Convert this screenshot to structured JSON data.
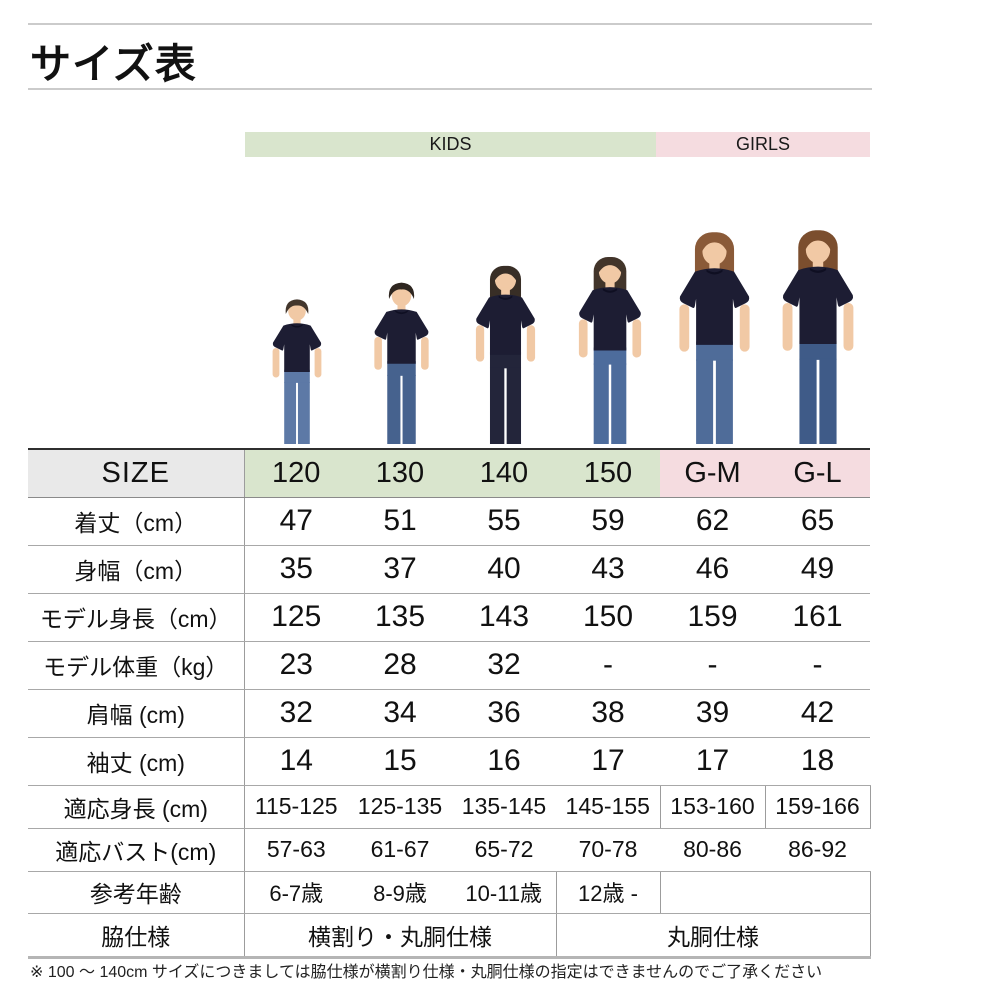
{
  "page": {
    "title": "サイズ表",
    "footnote": "※ 100 ～ 140cm サイズにつきましては脇仕様が横割り仕様・丸胴仕様の指定はできませんのでご了承ください"
  },
  "band": {
    "kids": "KIDS",
    "girls": "GIRLS"
  },
  "colors": {
    "kids_green": "#d9e5cd",
    "girls_pink": "#f5dce0",
    "header_gray": "#e9e9e9",
    "shirt_navy": "#1d1d33",
    "skin": "#f1c9a5",
    "rule_gray": "#cbcbcb",
    "border_gray": "#a8a8a8",
    "text": "#111111"
  },
  "table": {
    "size_label": "SIZE",
    "columns": [
      {
        "label": "120",
        "group": "kids"
      },
      {
        "label": "130",
        "group": "kids"
      },
      {
        "label": "140",
        "group": "kids"
      },
      {
        "label": "150",
        "group": "kids"
      },
      {
        "label": "G-M",
        "group": "girls"
      },
      {
        "label": "G-L",
        "group": "girls"
      }
    ],
    "rows": [
      {
        "label": "着丈（cm）",
        "values": [
          "47",
          "51",
          "55",
          "59",
          "62",
          "65"
        ]
      },
      {
        "label": "身幅（cm）",
        "values": [
          "35",
          "37",
          "40",
          "43",
          "46",
          "49"
        ]
      },
      {
        "label": "モデル身長（cm）",
        "values": [
          "125",
          "135",
          "143",
          "150",
          "159",
          "161"
        ]
      },
      {
        "label": "モデル体重（kg）",
        "values": [
          "23",
          "28",
          "32",
          "-",
          "-",
          "-"
        ]
      },
      {
        "label": "肩幅 (cm)",
        "values": [
          "32",
          "34",
          "36",
          "38",
          "39",
          "42"
        ]
      },
      {
        "label": "袖丈 (cm)",
        "values": [
          "14",
          "15",
          "16",
          "17",
          "17",
          "18"
        ]
      },
      {
        "label": "適応身長 (cm)",
        "values": [
          "115-125",
          "125-135",
          "135-145",
          "145-155",
          "153-160",
          "159-166"
        ]
      },
      {
        "label": "適応バスト(cm)",
        "values": [
          "57-63",
          "61-67",
          "65-72",
          "70-78",
          "80-86",
          "86-92"
        ]
      },
      {
        "label": "参考年齢",
        "values": [
          "6-7歳",
          "8-9歳",
          "10-11歳",
          "12歳 -",
          "",
          ""
        ]
      }
    ],
    "waki_row": {
      "label": "脇仕様",
      "kids_value": "横割り・丸胴仕様",
      "girls_value": "丸胴仕様"
    }
  },
  "models": [
    {
      "name": "model-photo-120",
      "type": "boy",
      "hair": "#42362c",
      "jeans": "#5d79a6"
    },
    {
      "name": "model-photo-130",
      "type": "boy",
      "hair": "#2e2620",
      "jeans": "#46628e"
    },
    {
      "name": "model-photo-140",
      "type": "girl",
      "hair": "#382e26",
      "jeans": "#23253a"
    },
    {
      "name": "model-photo-150",
      "type": "girl",
      "hair": "#42352a",
      "jeans": "#4d6c9c"
    },
    {
      "name": "model-photo-gm",
      "type": "woman",
      "hair": "#8a5a38",
      "jeans": "#4f6c99"
    },
    {
      "name": "model-photo-gl",
      "type": "woman",
      "hair": "#7b4e2e",
      "jeans": "#3f5b88"
    }
  ]
}
